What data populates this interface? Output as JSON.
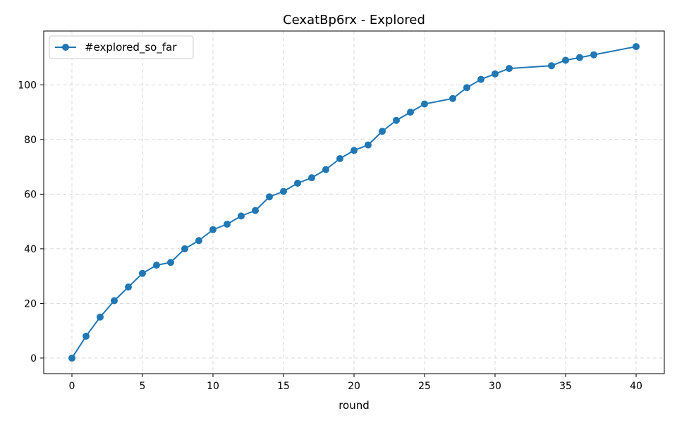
{
  "chart_data": {
    "type": "line",
    "title": "CexatBp6rx - Explored",
    "xlabel": "round",
    "ylabel": "",
    "xlim": [
      -2,
      42
    ],
    "ylim": [
      -5.7,
      119.7
    ],
    "xticks": [
      0,
      5,
      10,
      15,
      20,
      25,
      30,
      35,
      40
    ],
    "yticks": [
      0,
      20,
      40,
      60,
      80,
      100
    ],
    "grid": true,
    "legend_position": "top-left",
    "series": [
      {
        "name": "#explored_so_far",
        "color": "#1f77b4",
        "marker": "circle",
        "x": [
          0,
          1,
          2,
          3,
          4,
          5,
          6,
          7,
          8,
          9,
          10,
          11,
          12,
          13,
          14,
          15,
          16,
          17,
          18,
          19,
          20,
          21,
          22,
          23,
          24,
          25,
          27,
          28,
          29,
          30,
          31,
          34,
          35,
          36,
          37,
          40
        ],
        "y": [
          0,
          8,
          15,
          21,
          26,
          31,
          34,
          35,
          40,
          43,
          47,
          49,
          52,
          54,
          59,
          61,
          64,
          66,
          69,
          73,
          76,
          78,
          83,
          87,
          90,
          93,
          95,
          99,
          102,
          104,
          106,
          107,
          109,
          110,
          111,
          114
        ]
      }
    ]
  }
}
